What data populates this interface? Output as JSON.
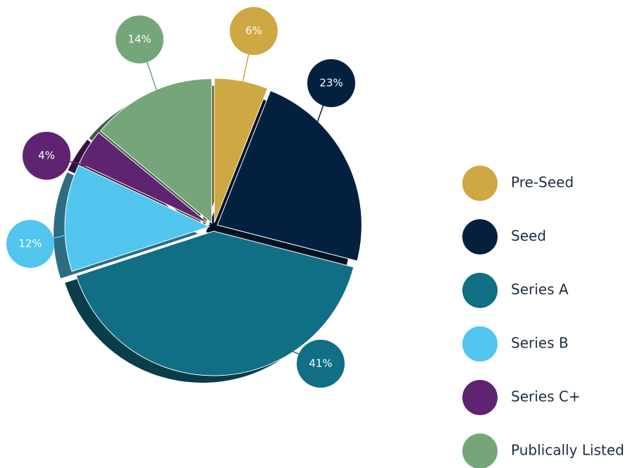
{
  "chart_data": {
    "type": "pie",
    "categories": [
      "Pre-Seed",
      "Seed",
      "Series A",
      "Series B",
      "Series C+",
      "Publically Listed"
    ],
    "values": [
      6,
      23,
      41,
      12,
      4,
      14
    ],
    "value_labels": [
      "6%",
      "23%",
      "41%",
      "12%",
      "4%",
      "14%"
    ],
    "colors": [
      "#cda843",
      "#03203f",
      "#106e85",
      "#52c6ef",
      "#5f2471",
      "#74a679"
    ],
    "legend": "right"
  }
}
